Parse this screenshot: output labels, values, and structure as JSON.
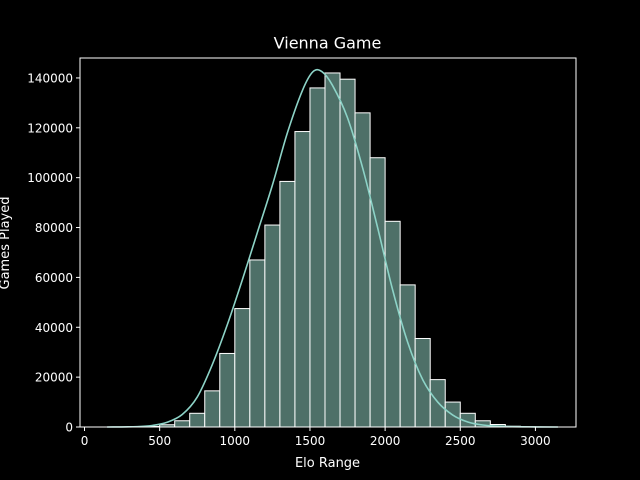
{
  "chart_data": {
    "type": "bar",
    "title": "Vienna Game",
    "xlabel": "Elo Range",
    "ylabel": "Games Played",
    "xlim": [
      -30,
      3270
    ],
    "ylim": [
      0,
      148000
    ],
    "xticks": [
      0,
      500,
      1000,
      1500,
      2000,
      2500,
      3000
    ],
    "yticks": [
      0,
      20000,
      40000,
      60000,
      80000,
      100000,
      120000,
      140000
    ],
    "bin_width": 100,
    "bins_start": 100,
    "values": [
      0,
      0,
      0,
      200,
      900,
      2500,
      5500,
      14500,
      29500,
      47500,
      67000,
      81000,
      98500,
      118500,
      136000,
      142000,
      139500,
      126000,
      108000,
      82500,
      57000,
      35500,
      19000,
      10000,
      5500,
      2500,
      1000,
      300,
      100,
      0,
      0
    ],
    "kde": [
      [
        150,
        0
      ],
      [
        350,
        150
      ],
      [
        450,
        600
      ],
      [
        550,
        1900
      ],
      [
        650,
        5000
      ],
      [
        750,
        12000
      ],
      [
        850,
        25000
      ],
      [
        950,
        41000
      ],
      [
        1050,
        59000
      ],
      [
        1150,
        78000
      ],
      [
        1250,
        97000
      ],
      [
        1350,
        118000
      ],
      [
        1450,
        135000
      ],
      [
        1520,
        142500
      ],
      [
        1580,
        142500
      ],
      [
        1650,
        137000
      ],
      [
        1750,
        124000
      ],
      [
        1850,
        104000
      ],
      [
        1950,
        80000
      ],
      [
        2050,
        55000
      ],
      [
        2150,
        34000
      ],
      [
        2250,
        19000
      ],
      [
        2350,
        10000
      ],
      [
        2450,
        4800
      ],
      [
        2550,
        2000
      ],
      [
        2650,
        800
      ],
      [
        2800,
        200
      ],
      [
        3000,
        30
      ],
      [
        3150,
        0
      ]
    ],
    "colors": {
      "background": "#000000",
      "bar_fill": "#4e7068",
      "bar_edge": "#ffffff",
      "kde_line": "#8dd3c7",
      "axes": "#ffffff",
      "text": "#ffffff"
    },
    "grid": false,
    "legend": "none"
  }
}
